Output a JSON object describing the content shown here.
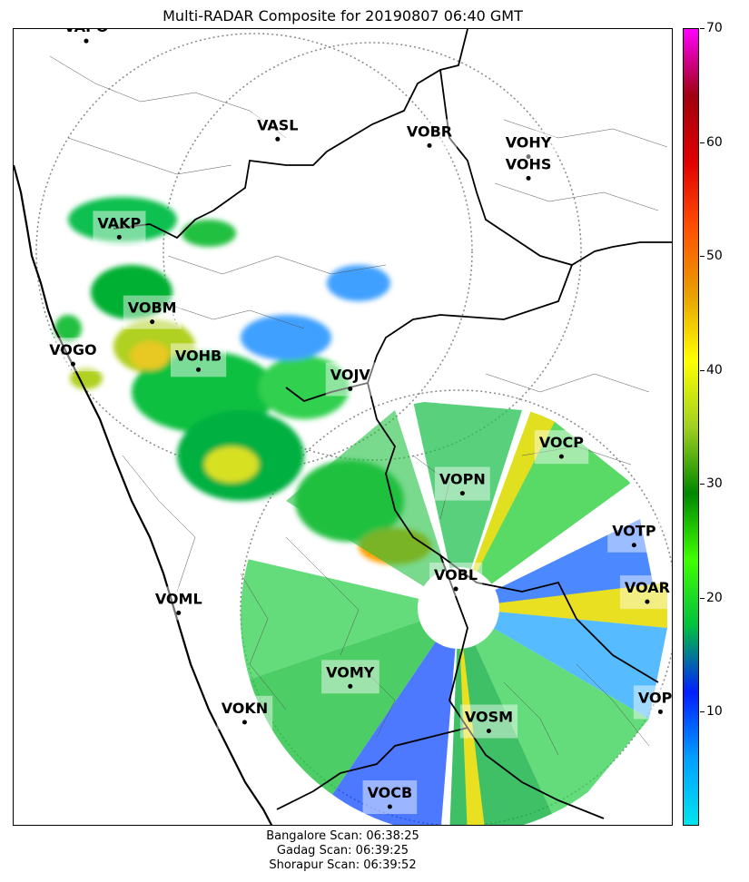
{
  "title": "Multi-RADAR Composite for 20190807 06:40 GMT",
  "colorbar": {
    "min": 0,
    "max": 70,
    "ticks": [
      "10",
      "20",
      "30",
      "40",
      "50",
      "60",
      "70"
    ],
    "stops": [
      "#00e5ee",
      "#00a0ff",
      "#0020ff",
      "#00c040",
      "#40ff00",
      "#008800",
      "#a0d020",
      "#ffff00",
      "#e8a000",
      "#ff5000",
      "#e00000",
      "#a00010",
      "#ff00ff"
    ]
  },
  "stations": [
    {
      "code": "VAPO",
      "lon_frac": 0.11,
      "lat_frac": 0.015
    },
    {
      "code": "VASL",
      "lon_frac": 0.4,
      "lat_frac": 0.138
    },
    {
      "code": "VOBR",
      "lon_frac": 0.63,
      "lat_frac": 0.146
    },
    {
      "code": "VOHY",
      "lon_frac": 0.78,
      "lat_frac": 0.16
    },
    {
      "code": "VOHS",
      "lon_frac": 0.78,
      "lat_frac": 0.187
    },
    {
      "code": "VAKP",
      "lon_frac": 0.16,
      "lat_frac": 0.261
    },
    {
      "code": "VOBM",
      "lon_frac": 0.21,
      "lat_frac": 0.367
    },
    {
      "code": "VOGO",
      "lon_frac": 0.09,
      "lat_frac": 0.42
    },
    {
      "code": "VOHB",
      "lon_frac": 0.28,
      "lat_frac": 0.427
    },
    {
      "code": "VOJV",
      "lon_frac": 0.51,
      "lat_frac": 0.451
    },
    {
      "code": "VOCP",
      "lon_frac": 0.83,
      "lat_frac": 0.536
    },
    {
      "code": "VOPN",
      "lon_frac": 0.68,
      "lat_frac": 0.582
    },
    {
      "code": "VOTP",
      "lon_frac": 0.94,
      "lat_frac": 0.647
    },
    {
      "code": "VOBL",
      "lon_frac": 0.67,
      "lat_frac": 0.702
    },
    {
      "code": "VOAR",
      "lon_frac": 0.96,
      "lat_frac": 0.718
    },
    {
      "code": "VOML",
      "lon_frac": 0.25,
      "lat_frac": 0.732
    },
    {
      "code": "VOMY",
      "lon_frac": 0.51,
      "lat_frac": 0.824
    },
    {
      "code": "VOKN",
      "lon_frac": 0.35,
      "lat_frac": 0.869
    },
    {
      "code": "VOPC",
      "lon_frac": 0.98,
      "lat_frac": 0.856
    },
    {
      "code": "VOSM",
      "lon_frac": 0.72,
      "lat_frac": 0.88
    },
    {
      "code": "VOCB",
      "lon_frac": 0.57,
      "lat_frac": 0.975
    }
  ],
  "footer": {
    "line1": "Bangalore Scan: 06:38:25",
    "line2": "Gadag Scan: 06:39:25",
    "line3": "Shorapur Scan: 06:39:52"
  }
}
